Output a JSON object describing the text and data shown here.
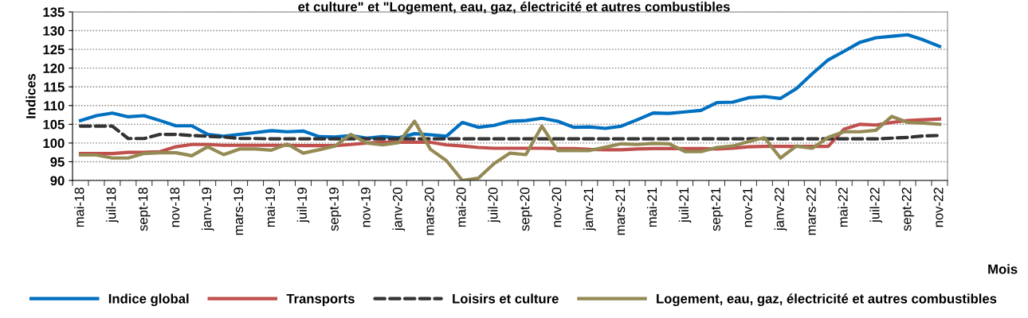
{
  "chart_data": {
    "type": "line",
    "title": "et culture\" et \"Logement, eau, gaz, électricité et autres combustibles",
    "xlabel": "Mois",
    "ylabel": "Indices",
    "categories": [
      "mai-18",
      null,
      "juil-18",
      null,
      "sept-18",
      null,
      "nov-18",
      null,
      "janv-19",
      null,
      "mars-19",
      null,
      "mai-19",
      null,
      "juil-19",
      null,
      "sept-19",
      null,
      "nov-19",
      null,
      "janv-20",
      null,
      "mars-20",
      null,
      "mai-20",
      null,
      "juil-20",
      null,
      "sept-20",
      null,
      "nov-20",
      null,
      "janv-21",
      null,
      "mars-21",
      null,
      "mai-21",
      null,
      "juil-21",
      null,
      "sept-21",
      null,
      "nov-21",
      null,
      "janv-22",
      null,
      "mars-22",
      null,
      "mai-22",
      null,
      "juil-22",
      null,
      "sept-22",
      null,
      "nov-22"
    ],
    "series": [
      {
        "name": "Indice global",
        "color": "#0070c0",
        "line_style": "solid",
        "values": [
          106,
          107.3,
          108,
          107,
          107.3,
          106,
          104.6,
          104.6,
          102.3,
          101.8,
          102.3,
          102.8,
          103.3,
          103,
          103.2,
          101.7,
          101.6,
          102,
          101.3,
          101.7,
          101.4,
          102.5,
          102.2,
          101.8,
          105.5,
          104.2,
          104.7,
          105.8,
          106,
          106.6,
          105.8,
          104.2,
          104.3,
          103.9,
          104.5,
          106.2,
          108,
          107.9,
          108.3,
          108.7,
          110.8,
          110.9,
          112.1,
          112.4,
          111.9,
          114.5,
          118.5,
          122.2,
          124.5,
          126.9,
          128.1,
          128.5,
          128.9,
          127.5,
          125.8
        ]
      },
      {
        "name": "Transports",
        "color": "#c0504d",
        "line_style": "solid",
        "values": [
          97.2,
          97.2,
          97.2,
          97.5,
          97.5,
          97.7,
          99,
          99.6,
          99.6,
          99.4,
          99.4,
          99.4,
          99.4,
          99.4,
          99.3,
          99.3,
          99.3,
          99.6,
          100,
          100.2,
          100.2,
          100.2,
          100.2,
          99.5,
          99.2,
          98.8,
          98.6,
          98.6,
          98.6,
          98.6,
          98.5,
          98.5,
          98.3,
          98.2,
          98.2,
          98.4,
          98.5,
          98.5,
          98.5,
          98.5,
          98.4,
          98.6,
          99,
          99.1,
          99.1,
          99.1,
          99.1,
          99.1,
          103.7,
          105,
          104.8,
          105.5,
          106,
          106.2,
          106.4
        ]
      },
      {
        "name": "Loisirs et culture",
        "color": "#333333",
        "line_style": "dashed",
        "values": [
          104.5,
          104.5,
          104.5,
          101.2,
          101.2,
          102.3,
          102.3,
          102,
          101.8,
          101.6,
          101.2,
          101.2,
          101.1,
          101.1,
          101.1,
          101.1,
          101.1,
          101.1,
          101.1,
          101.1,
          101.1,
          101.1,
          101.1,
          101.1,
          101.1,
          101.1,
          101.1,
          101.1,
          101.1,
          101.1,
          101.1,
          101.1,
          101.1,
          101.1,
          101.1,
          101.1,
          101.1,
          101.1,
          101.1,
          101.1,
          101.1,
          101.1,
          101.1,
          101.1,
          101.1,
          101.1,
          101.1,
          101.1,
          101.1,
          101.1,
          101.1,
          101.3,
          101.5,
          101.9,
          102
        ]
      },
      {
        "name": "Logement, eau, gaz, électricité et autres combustibles",
        "color": "#948a54",
        "line_style": "solid",
        "values": [
          96.8,
          96.8,
          96,
          96,
          97.2,
          97.4,
          97.4,
          96.6,
          99,
          96.9,
          98.4,
          98.4,
          98.1,
          99.7,
          97.3,
          98.2,
          99.2,
          102.3,
          100,
          99.5,
          100.1,
          105.8,
          98.3,
          95.3,
          90,
          90.6,
          94.5,
          97.3,
          96.9,
          104.5,
          98,
          98,
          98,
          98.9,
          99.8,
          99.6,
          99.9,
          99.8,
          97.7,
          97.7,
          98.8,
          99.2,
          100.4,
          101.4,
          96,
          99.2,
          98.6,
          101.5,
          103,
          103,
          103.4,
          107.1,
          105.5,
          105.3,
          105
        ]
      }
    ],
    "ylim": [
      90,
      135
    ],
    "yticks": [
      90,
      95,
      100,
      105,
      110,
      115,
      120,
      125,
      130,
      135
    ],
    "grid": "y",
    "legend": "bottom",
    "marker": "none"
  }
}
